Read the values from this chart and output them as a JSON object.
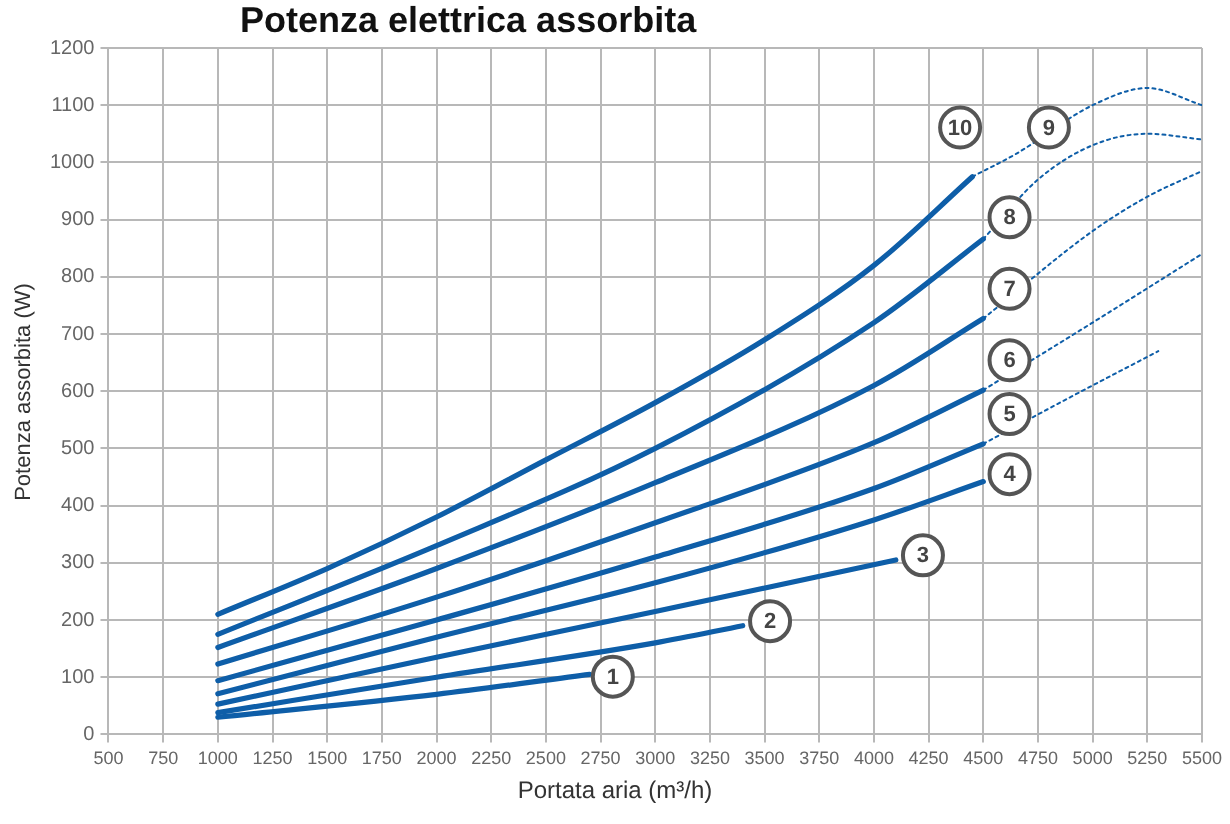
{
  "chart_data": {
    "type": "line",
    "title": "Potenza elettrica assorbita",
    "xlabel": "Portata aria (m³/h)",
    "ylabel": "Potenza assorbita (W)",
    "xlim": [
      500,
      5500
    ],
    "xticks": [
      500,
      750,
      1000,
      1250,
      1500,
      1750,
      2000,
      2250,
      2500,
      2750,
      3000,
      3250,
      3500,
      3750,
      4000,
      4250,
      4500,
      4750,
      5000,
      5250,
      5500
    ],
    "ylim": [
      0,
      1200
    ],
    "yticks": [
      0,
      100,
      200,
      300,
      400,
      500,
      600,
      700,
      800,
      900,
      1000,
      1100,
      1200
    ],
    "grid": true,
    "legend": false,
    "marker": "none",
    "series": [
      {
        "color": "#0e5ea8",
        "line_style": "solid",
        "x": [
          1000,
          2000,
          2700
        ],
        "values": [
          30,
          70,
          105
        ]
      },
      {
        "color": "#0e5ea8",
        "line_style": "solid",
        "x": [
          1000,
          2000,
          3000,
          3400
        ],
        "values": [
          38,
          100,
          160,
          190
        ]
      },
      {
        "color": "#0e5ea8",
        "line_style": "solid",
        "x": [
          1000,
          2000,
          3000,
          4100
        ],
        "values": [
          53,
          135,
          215,
          305
        ]
      },
      {
        "color": "#0e5ea8",
        "line_style": "solid",
        "x": [
          1000,
          2000,
          3000,
          4000,
          4500
        ],
        "values": [
          71,
          170,
          265,
          375,
          442
        ]
      },
      {
        "color": "#0e5ea8",
        "line_style": "solid",
        "x": [
          1000,
          2000,
          3000,
          4000,
          4500
        ],
        "values": [
          94,
          200,
          310,
          430,
          508
        ]
      },
      {
        "color": "#0e5ea8",
        "line_style": "solid",
        "x": [
          1000,
          2000,
          3000,
          4000,
          4500
        ],
        "values": [
          123,
          240,
          370,
          510,
          602
        ]
      },
      {
        "color": "#0e5ea8",
        "line_style": "solid",
        "x": [
          1000,
          2000,
          3000,
          4000,
          4500
        ],
        "values": [
          152,
          290,
          440,
          610,
          727
        ]
      },
      {
        "color": "#0e5ea8",
        "line_style": "solid",
        "x": [
          1000,
          2000,
          3000,
          4000,
          4500
        ],
        "values": [
          175,
          330,
          500,
          720,
          866
        ]
      },
      {
        "color": "#0e5ea8",
        "line_style": "solid",
        "x": [
          1000,
          1500,
          2000,
          2500,
          3000,
          3500,
          4000,
          4450
        ],
        "values": [
          210,
          290,
          380,
          480,
          580,
          690,
          820,
          975
        ]
      },
      {
        "color": "#0e5ea8",
        "line_style": "dotted",
        "x": [
          4500,
          4900,
          5300
        ],
        "values": [
          508,
          590,
          670
        ]
      },
      {
        "color": "#0e5ea8",
        "line_style": "dotted",
        "x": [
          4500,
          5000,
          5500
        ],
        "values": [
          602,
          720,
          840
        ]
      },
      {
        "color": "#0e5ea8",
        "line_style": "dotted",
        "x": [
          4500,
          5000,
          5250,
          5500
        ],
        "values": [
          727,
          880,
          940,
          985
        ]
      },
      {
        "color": "#0e5ea8",
        "line_style": "dotted",
        "x": [
          4500,
          4750,
          5000,
          5250,
          5500
        ],
        "values": [
          866,
          970,
          1030,
          1050,
          1040
        ]
      },
      {
        "color": "#0e5ea8",
        "line_style": "dotted",
        "x": [
          4450,
          4650,
          5000,
          5250,
          5500
        ],
        "values": [
          975,
          1015,
          1100,
          1130,
          1100
        ]
      }
    ],
    "annotations": [
      {
        "text": "1",
        "x": 2806,
        "y": 101
      },
      {
        "text": "2",
        "x": 3525,
        "y": 198
      },
      {
        "text": "3",
        "x": 4224,
        "y": 313
      },
      {
        "text": "4",
        "x": 4620,
        "y": 455
      },
      {
        "text": "5",
        "x": 4620,
        "y": 560
      },
      {
        "text": "6",
        "x": 4620,
        "y": 654
      },
      {
        "text": "7",
        "x": 4620,
        "y": 779
      },
      {
        "text": "8",
        "x": 4620,
        "y": 904
      },
      {
        "text": "10",
        "x": 4394,
        "y": 1061
      },
      {
        "text": "9",
        "x": 4800,
        "y": 1061
      }
    ]
  }
}
